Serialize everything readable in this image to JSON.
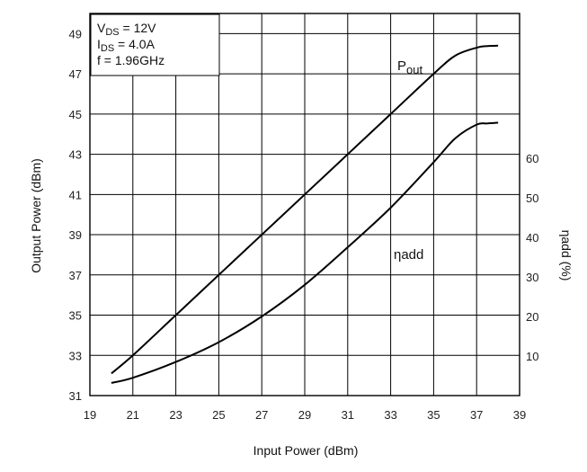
{
  "chart_data": {
    "type": "line",
    "xlabel": "Input Power (dBm)",
    "ylabel": "Output Power (dBm)",
    "y2label": "ηadd (%)",
    "xlim": [
      19,
      39
    ],
    "ylim": [
      31,
      50
    ],
    "y2lim": [
      0,
      96.6
    ],
    "x_ticks": [
      "19",
      "21",
      "23",
      "25",
      "27",
      "29",
      "31",
      "33",
      "35",
      "37",
      "39"
    ],
    "y_ticks": [
      "31",
      "33",
      "35",
      "37",
      "39",
      "41",
      "43",
      "45",
      "47",
      "49"
    ],
    "y2_ticks": [
      "10",
      "20",
      "30",
      "40",
      "50",
      "60"
    ],
    "grid": true,
    "conditions": {
      "vds": {
        "main": "V",
        "sub": "DS",
        "value": " = 12V"
      },
      "ids": {
        "main": "I",
        "sub": "DS",
        "value": " = 4.0A"
      },
      "freq": "f = 1.96GHz"
    },
    "series": [
      {
        "name": "Pout",
        "label_main": "P",
        "label_sub": "out",
        "axis": "left",
        "x": [
          20,
          21,
          23,
          25,
          27,
          29,
          31,
          33,
          35,
          36,
          37,
          37.5,
          38
        ],
        "y": [
          32.1,
          33.0,
          35.0,
          37.0,
          39.0,
          41.0,
          43.0,
          45.0,
          47.0,
          47.9,
          48.3,
          48.38,
          48.4
        ]
      },
      {
        "name": "ηadd",
        "label_main": "ηadd",
        "axis": "right",
        "x": [
          20,
          21,
          23,
          25,
          27,
          29,
          31,
          33,
          35,
          36,
          37,
          37.5,
          38
        ],
        "y": [
          3.2,
          4.5,
          8.5,
          13.5,
          20.0,
          28.0,
          37.5,
          47.5,
          59.0,
          65.0,
          68.5,
          68.8,
          69.0
        ]
      }
    ]
  }
}
